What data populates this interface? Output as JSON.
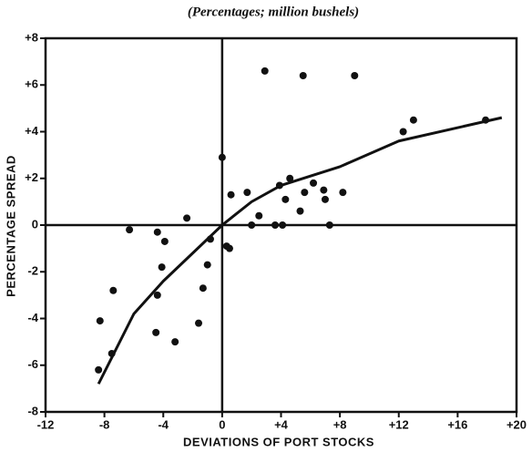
{
  "chart_data": {
    "type": "scatter",
    "title": "(Percentages; million bushels)",
    "x_label": "DEVIATIONS OF PORT STOCKS",
    "y_label": "PERCENTAGE SPREAD",
    "xlim": [
      -12,
      20
    ],
    "ylim": [
      -8,
      8
    ],
    "xticks": [
      -12,
      -8,
      -4,
      0,
      {
        "value": 4,
        "label": "+4"
      },
      {
        "value": 8,
        "label": "+8"
      },
      {
        "value": 12,
        "label": "+12"
      },
      {
        "value": 16,
        "label": "+16"
      },
      {
        "value": 20,
        "label": "+20"
      }
    ],
    "yticks": [
      -8,
      -6,
      -4,
      -2,
      0,
      {
        "value": 2,
        "label": "+2"
      },
      {
        "value": 4,
        "label": "+4"
      },
      {
        "value": 6,
        "label": "+6"
      },
      {
        "value": 8,
        "label": "+8"
      }
    ],
    "series": [
      {
        "type": "scatter",
        "color": "#111111",
        "x": [
          -8.3,
          -7.4,
          -7.5,
          -8.4,
          -6.3,
          -4.4,
          -3.9,
          -4.1,
          -4.4,
          -4.5,
          -3.2,
          -2.4,
          -1.6,
          -1.3,
          -1.0,
          -0.8,
          0,
          0.3,
          0.5,
          0.6,
          1.7,
          2.0,
          2.5,
          2.9,
          3.6,
          3.9,
          4.1,
          4.3,
          4.6,
          5.3,
          5.5,
          5.6,
          6.2,
          6.9,
          7.0,
          7.3,
          8.2,
          9.0,
          12.3,
          13.0,
          17.9
        ],
        "values": [
          -4.1,
          -2.8,
          -5.5,
          -6.2,
          -0.2,
          -0.3,
          -0.7,
          -1.8,
          -3.0,
          -4.6,
          -5.0,
          0.3,
          -4.2,
          -2.7,
          -1.7,
          -0.6,
          2.9,
          -0.9,
          -1.0,
          1.3,
          1.4,
          0,
          0.4,
          6.6,
          0,
          1.7,
          0,
          1.1,
          2.0,
          0.6,
          6.4,
          1.4,
          1.8,
          1.5,
          1.1,
          0,
          1.4,
          6.4,
          4.0,
          4.5,
          4.5
        ]
      },
      {
        "type": "line",
        "color": "#111111",
        "x": [
          -8.4,
          -6,
          -4,
          -2,
          0,
          2,
          4,
          8,
          12,
          19
        ],
        "values": [
          -6.8,
          -3.8,
          -2.4,
          -1.2,
          0,
          1.0,
          1.7,
          2.5,
          3.6,
          4.6
        ]
      }
    ]
  }
}
